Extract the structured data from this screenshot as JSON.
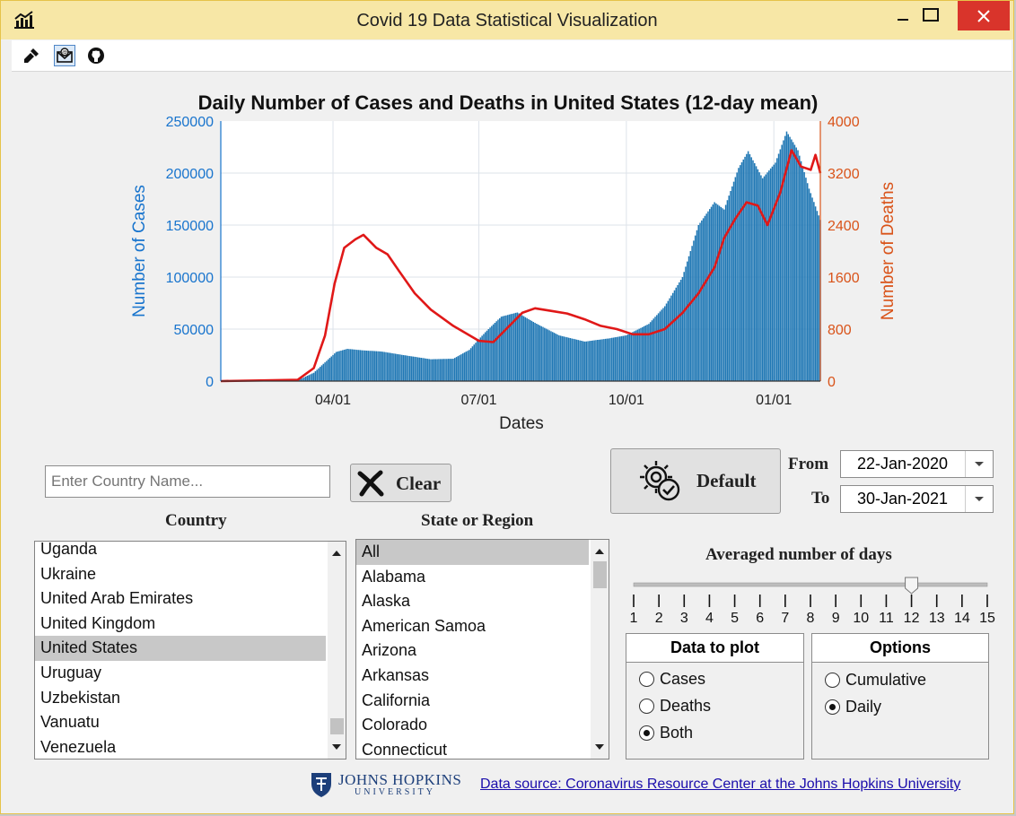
{
  "window": {
    "title": "Covid 19 Data Statistical Visualization"
  },
  "toolbar": {
    "icons": [
      "brush-icon",
      "email-icon",
      "github-icon"
    ]
  },
  "chart_data": {
    "type": "bar+line",
    "title": "Daily Number of Cases and Deaths in United States (12-day mean)",
    "xlabel": "Dates",
    "ylabel_left": "Number of Cases",
    "ylabel_right": "Number of Deaths",
    "x_ticks": [
      "04/01",
      "07/01",
      "10/01",
      "01/01"
    ],
    "y_left_ticks": [
      0,
      50000,
      100000,
      150000,
      200000,
      250000
    ],
    "y_right_ticks": [
      0,
      800,
      1600,
      2400,
      3200,
      4000
    ],
    "ylim_left": [
      0,
      250000
    ],
    "ylim_right": [
      0,
      4000
    ],
    "xlim": [
      "2020-01-22",
      "2021-01-30"
    ],
    "grid": true,
    "colors": {
      "cases": "#1f77b4",
      "deaths": "#e01818",
      "left_axis": "#1874cd",
      "right_axis": "#d95319"
    },
    "cases_series": [
      {
        "x": "2020-01-22",
        "y": 0
      },
      {
        "x": "2020-03-01",
        "y": 100
      },
      {
        "x": "2020-03-10",
        "y": 800
      },
      {
        "x": "2020-03-20",
        "y": 8000
      },
      {
        "x": "2020-03-27",
        "y": 18000
      },
      {
        "x": "2020-04-03",
        "y": 28000
      },
      {
        "x": "2020-04-10",
        "y": 31000
      },
      {
        "x": "2020-04-20",
        "y": 29500
      },
      {
        "x": "2020-05-01",
        "y": 28500
      },
      {
        "x": "2020-05-15",
        "y": 25000
      },
      {
        "x": "2020-06-01",
        "y": 21000
      },
      {
        "x": "2020-06-15",
        "y": 21500
      },
      {
        "x": "2020-06-25",
        "y": 30000
      },
      {
        "x": "2020-07-05",
        "y": 47000
      },
      {
        "x": "2020-07-15",
        "y": 62000
      },
      {
        "x": "2020-07-25",
        "y": 66000
      },
      {
        "x": "2020-08-05",
        "y": 56000
      },
      {
        "x": "2020-08-20",
        "y": 44000
      },
      {
        "x": "2020-09-05",
        "y": 38000
      },
      {
        "x": "2020-09-20",
        "y": 41000
      },
      {
        "x": "2020-10-01",
        "y": 44000
      },
      {
        "x": "2020-10-15",
        "y": 55000
      },
      {
        "x": "2020-10-25",
        "y": 72000
      },
      {
        "x": "2020-11-05",
        "y": 100000
      },
      {
        "x": "2020-11-15",
        "y": 150000
      },
      {
        "x": "2020-11-25",
        "y": 172000
      },
      {
        "x": "2020-12-01",
        "y": 165000
      },
      {
        "x": "2020-12-10",
        "y": 205000
      },
      {
        "x": "2020-12-16",
        "y": 221000
      },
      {
        "x": "2020-12-25",
        "y": 195000
      },
      {
        "x": "2021-01-02",
        "y": 210000
      },
      {
        "x": "2021-01-09",
        "y": 240000
      },
      {
        "x": "2021-01-16",
        "y": 222000
      },
      {
        "x": "2021-01-23",
        "y": 185000
      },
      {
        "x": "2021-01-30",
        "y": 155000
      }
    ],
    "deaths_series": [
      {
        "x": "2020-01-22",
        "y": 0
      },
      {
        "x": "2020-03-10",
        "y": 20
      },
      {
        "x": "2020-03-20",
        "y": 200
      },
      {
        "x": "2020-03-27",
        "y": 700
      },
      {
        "x": "2020-04-02",
        "y": 1500
      },
      {
        "x": "2020-04-08",
        "y": 2050
      },
      {
        "x": "2020-04-15",
        "y": 2180
      },
      {
        "x": "2020-04-20",
        "y": 2250
      },
      {
        "x": "2020-04-28",
        "y": 2050
      },
      {
        "x": "2020-05-05",
        "y": 1950
      },
      {
        "x": "2020-05-12",
        "y": 1700
      },
      {
        "x": "2020-05-22",
        "y": 1350
      },
      {
        "x": "2020-06-01",
        "y": 1100
      },
      {
        "x": "2020-06-15",
        "y": 850
      },
      {
        "x": "2020-07-01",
        "y": 620
      },
      {
        "x": "2020-07-10",
        "y": 600
      },
      {
        "x": "2020-07-20",
        "y": 850
      },
      {
        "x": "2020-07-28",
        "y": 1050
      },
      {
        "x": "2020-08-05",
        "y": 1120
      },
      {
        "x": "2020-08-15",
        "y": 1080
      },
      {
        "x": "2020-08-25",
        "y": 1040
      },
      {
        "x": "2020-09-05",
        "y": 950
      },
      {
        "x": "2020-09-15",
        "y": 850
      },
      {
        "x": "2020-09-25",
        "y": 800
      },
      {
        "x": "2020-10-05",
        "y": 720
      },
      {
        "x": "2020-10-15",
        "y": 720
      },
      {
        "x": "2020-10-25",
        "y": 800
      },
      {
        "x": "2020-11-05",
        "y": 1050
      },
      {
        "x": "2020-11-15",
        "y": 1350
      },
      {
        "x": "2020-11-25",
        "y": 1750
      },
      {
        "x": "2020-12-01",
        "y": 2200
      },
      {
        "x": "2020-12-08",
        "y": 2500
      },
      {
        "x": "2020-12-15",
        "y": 2750
      },
      {
        "x": "2020-12-22",
        "y": 2700
      },
      {
        "x": "2020-12-28",
        "y": 2400
      },
      {
        "x": "2021-01-05",
        "y": 2900
      },
      {
        "x": "2021-01-12",
        "y": 3550
      },
      {
        "x": "2021-01-18",
        "y": 3300
      },
      {
        "x": "2021-01-24",
        "y": 3250
      },
      {
        "x": "2021-01-27",
        "y": 3480
      },
      {
        "x": "2021-01-30",
        "y": 3200
      }
    ]
  },
  "search": {
    "placeholder": "Enter Country Name..."
  },
  "clear_button": {
    "label": "Clear"
  },
  "default_button": {
    "label": "Default"
  },
  "date_range": {
    "from_label": "From",
    "from_value": "22-Jan-2020",
    "to_label": "To",
    "to_value": "30-Jan-2021"
  },
  "country_list": {
    "label": "Country",
    "items": [
      "Uganda",
      "Ukraine",
      "United Arab Emirates",
      "United Kingdom",
      "United States",
      "Uruguay",
      "Uzbekistan",
      "Vanuatu",
      "Venezuela"
    ],
    "selected": "United States"
  },
  "state_list": {
    "label": "State or Region",
    "items": [
      "All",
      "Alabama",
      "Alaska",
      "American Samoa",
      "Arizona",
      "Arkansas",
      "California",
      "Colorado",
      "Connecticut"
    ],
    "selected": "All"
  },
  "slider": {
    "label": "Averaged number of days",
    "ticks": [
      "1",
      "2",
      "3",
      "4",
      "5",
      "6",
      "7",
      "8",
      "9",
      "10",
      "11",
      "12",
      "13",
      "14",
      "15"
    ],
    "value": 12
  },
  "data_to_plot": {
    "title": "Data to plot",
    "options": [
      "Cases",
      "Deaths",
      "Both"
    ],
    "selected": "Both"
  },
  "options": {
    "title": "Options",
    "options": [
      "Cumulative",
      "Daily"
    ],
    "selected": "Daily"
  },
  "footer": {
    "logo_text": "JOHNS HOPKINS",
    "logo_sub": "UNIVERSITY",
    "link": "Data source: Coronavirus Resource Center at the Johns Hopkins University"
  }
}
